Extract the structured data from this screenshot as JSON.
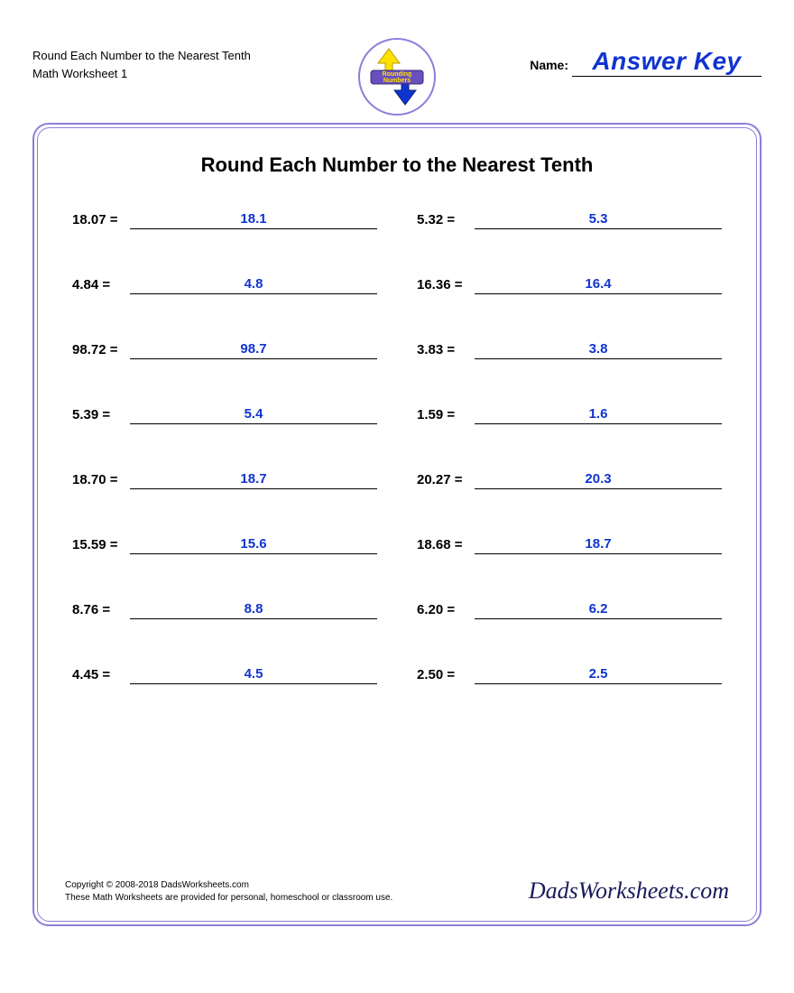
{
  "header": {
    "title_line1": "Round Each Number to the Nearest Tenth",
    "title_line2": "Math Worksheet 1",
    "logo_text": "Rounding Numbers",
    "name_label": "Name:",
    "answer_key_text": "Answer Key"
  },
  "worksheet": {
    "title": "Round Each Number to the Nearest Tenth",
    "problems": [
      {
        "prompt": "18.07 =",
        "answer": "18.1"
      },
      {
        "prompt": "5.32 =",
        "answer": "5.3"
      },
      {
        "prompt": "4.84 =",
        "answer": "4.8"
      },
      {
        "prompt": "16.36 =",
        "answer": "16.4"
      },
      {
        "prompt": "98.72 =",
        "answer": "98.7"
      },
      {
        "prompt": "3.83 =",
        "answer": "3.8"
      },
      {
        "prompt": "5.39 =",
        "answer": "5.4"
      },
      {
        "prompt": "1.59 =",
        "answer": "1.6"
      },
      {
        "prompt": "18.70 =",
        "answer": "18.7"
      },
      {
        "prompt": "20.27 =",
        "answer": "20.3"
      },
      {
        "prompt": "15.59 =",
        "answer": "15.6"
      },
      {
        "prompt": "18.68 =",
        "answer": "18.7"
      },
      {
        "prompt": "8.76 =",
        "answer": "8.8"
      },
      {
        "prompt": "6.20 =",
        "answer": "6.2"
      },
      {
        "prompt": "4.45 =",
        "answer": "4.5"
      },
      {
        "prompt": "2.50 =",
        "answer": "2.5"
      }
    ]
  },
  "footer": {
    "copyright": "Copyright © 2008-2018 DadsWorksheets.com",
    "note": "These Math Worksheets are provided for personal, homeschool or classroom use.",
    "brand": "DadsWorksheets.com"
  },
  "colors": {
    "border": "#8a7fd9",
    "answer": "#1034d0",
    "text": "#000000",
    "logo_up": "#ffe100",
    "logo_down": "#1034d0",
    "logo_band": "#6a4fbf"
  }
}
